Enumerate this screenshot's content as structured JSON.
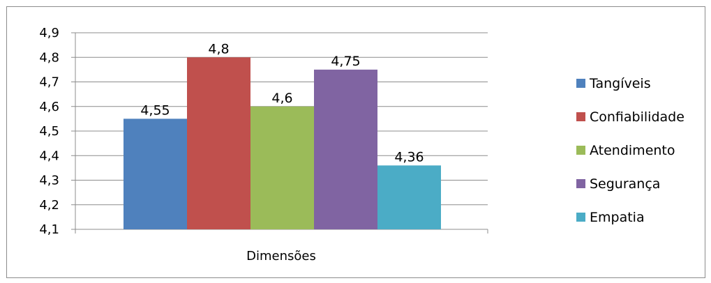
{
  "chart_data": {
    "type": "bar",
    "title": "",
    "xlabel": "Dimensões",
    "ylabel": "",
    "categories": [
      "Dimensões"
    ],
    "series": [
      {
        "name": "Tangíveis",
        "values": [
          4.55
        ],
        "label": "4,55",
        "color": "#4f81bd"
      },
      {
        "name": "Confiabilidade",
        "values": [
          4.8
        ],
        "label": "4,8",
        "color": "#c0504d"
      },
      {
        "name": "Atendimento",
        "values": [
          4.6
        ],
        "label": "4,6",
        "color": "#9bbb59"
      },
      {
        "name": "Segurança",
        "values": [
          4.75
        ],
        "label": "4,75",
        "color": "#8064a2"
      },
      {
        "name": "Empatia",
        "values": [
          4.36
        ],
        "label": "4,36",
        "color": "#4bacc6"
      }
    ],
    "ylim": [
      4.1,
      4.9
    ],
    "yticks": [
      "4,1",
      "4,2",
      "4,3",
      "4,4",
      "4,5",
      "4,6",
      "4,7",
      "4,8",
      "4,9"
    ],
    "grid": true,
    "legend": "right"
  }
}
